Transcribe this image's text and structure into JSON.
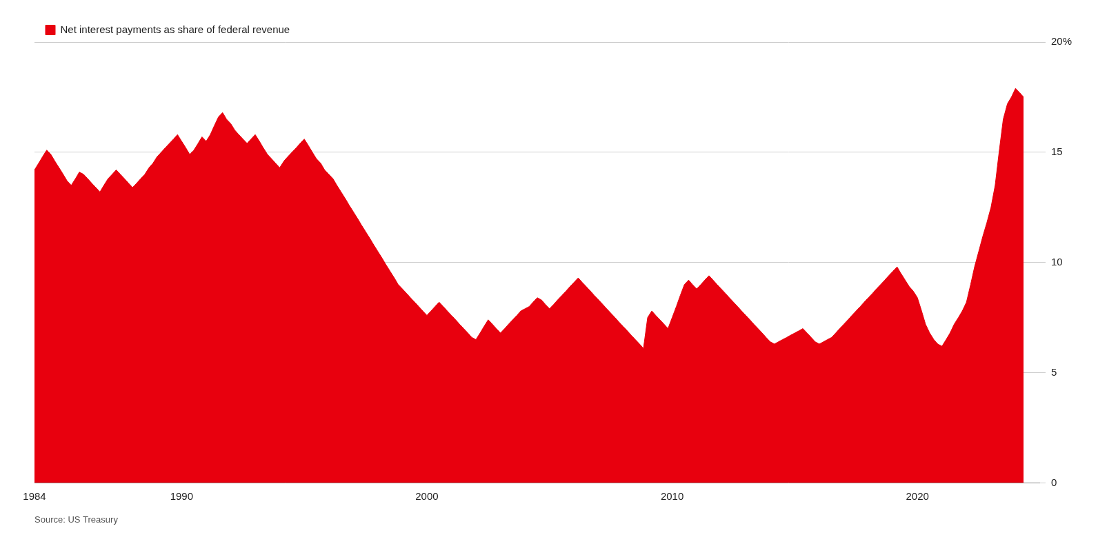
{
  "chart_data": {
    "type": "area",
    "x": [
      1984.0,
      1984.17,
      1984.33,
      1984.5,
      1984.67,
      1984.83,
      1985.0,
      1985.17,
      1985.33,
      1985.5,
      1985.67,
      1985.83,
      1986.0,
      1986.17,
      1986.33,
      1986.5,
      1986.67,
      1986.83,
      1987.0,
      1987.17,
      1987.33,
      1987.5,
      1987.67,
      1987.83,
      1988.0,
      1988.17,
      1988.33,
      1988.5,
      1988.67,
      1988.83,
      1989.0,
      1989.17,
      1989.33,
      1989.5,
      1989.67,
      1989.83,
      1990.0,
      1990.17,
      1990.33,
      1990.5,
      1990.67,
      1990.83,
      1991.0,
      1991.17,
      1991.33,
      1991.5,
      1991.67,
      1991.83,
      1992.0,
      1992.17,
      1992.33,
      1992.5,
      1992.67,
      1992.83,
      1993.0,
      1993.17,
      1993.33,
      1993.5,
      1993.67,
      1993.83,
      1994.0,
      1994.17,
      1994.33,
      1994.5,
      1994.67,
      1994.83,
      1995.0,
      1995.17,
      1995.33,
      1995.5,
      1995.67,
      1995.83,
      1996.0,
      1996.17,
      1996.33,
      1996.5,
      1996.67,
      1996.83,
      1997.0,
      1997.17,
      1997.33,
      1997.5,
      1997.67,
      1997.83,
      1998.0,
      1998.17,
      1998.33,
      1998.5,
      1998.67,
      1998.83,
      1999.0,
      1999.17,
      1999.33,
      1999.5,
      1999.67,
      1999.83,
      2000.0,
      2000.17,
      2000.33,
      2000.5,
      2000.67,
      2000.83,
      2001.0,
      2001.17,
      2001.33,
      2001.5,
      2001.67,
      2001.83,
      2002.0,
      2002.17,
      2002.33,
      2002.5,
      2002.67,
      2002.83,
      2003.0,
      2003.17,
      2003.33,
      2003.5,
      2003.67,
      2003.83,
      2004.0,
      2004.17,
      2004.33,
      2004.5,
      2004.67,
      2004.83,
      2005.0,
      2005.17,
      2005.33,
      2005.5,
      2005.67,
      2005.83,
      2006.0,
      2006.17,
      2006.33,
      2006.5,
      2006.67,
      2006.83,
      2007.0,
      2007.17,
      2007.33,
      2007.5,
      2007.67,
      2007.83,
      2008.0,
      2008.17,
      2008.33,
      2008.5,
      2008.67,
      2008.83,
      2009.0,
      2009.17,
      2009.33,
      2009.5,
      2009.67,
      2009.83,
      2010.0,
      2010.17,
      2010.33,
      2010.5,
      2010.67,
      2010.83,
      2011.0,
      2011.17,
      2011.33,
      2011.5,
      2011.67,
      2011.83,
      2012.0,
      2012.17,
      2012.33,
      2012.5,
      2012.67,
      2012.83,
      2013.0,
      2013.17,
      2013.33,
      2013.5,
      2013.67,
      2013.83,
      2014.0,
      2014.17,
      2014.33,
      2014.5,
      2014.67,
      2014.83,
      2015.0,
      2015.17,
      2015.33,
      2015.5,
      2015.67,
      2015.83,
      2016.0,
      2016.17,
      2016.33,
      2016.5,
      2016.67,
      2016.83,
      2017.0,
      2017.17,
      2017.33,
      2017.5,
      2017.67,
      2017.83,
      2018.0,
      2018.17,
      2018.33,
      2018.5,
      2018.67,
      2018.83,
      2019.0,
      2019.17,
      2019.33,
      2019.5,
      2019.67,
      2019.83,
      2020.0,
      2020.17,
      2020.33,
      2020.5,
      2020.67,
      2020.83,
      2021.0,
      2021.17,
      2021.33,
      2021.5,
      2021.67,
      2021.83,
      2022.0,
      2022.17,
      2022.33,
      2022.5,
      2022.67,
      2022.83,
      2023.0,
      2023.17,
      2023.33,
      2023.5,
      2023.67,
      2023.83,
      2024.0,
      2024.17,
      2024.33
    ],
    "series": [
      {
        "name": "Net interest payments as share of federal revenue",
        "color": "#E8000E",
        "values": [
          14.2,
          14.5,
          14.8,
          15.1,
          14.9,
          14.6,
          14.3,
          14.0,
          13.7,
          13.5,
          13.8,
          14.1,
          14.0,
          13.8,
          13.6,
          13.4,
          13.2,
          13.5,
          13.8,
          14.0,
          14.2,
          14.0,
          13.8,
          13.6,
          13.4,
          13.6,
          13.8,
          14.0,
          14.3,
          14.5,
          14.8,
          15.0,
          15.2,
          15.4,
          15.6,
          15.8,
          15.5,
          15.2,
          14.9,
          15.1,
          15.4,
          15.7,
          15.5,
          15.8,
          16.2,
          16.6,
          16.8,
          16.5,
          16.3,
          16.0,
          15.8,
          15.6,
          15.4,
          15.6,
          15.8,
          15.5,
          15.2,
          14.9,
          14.7,
          14.5,
          14.3,
          14.6,
          14.8,
          15.0,
          15.2,
          15.4,
          15.6,
          15.3,
          15.0,
          14.7,
          14.5,
          14.2,
          14.0,
          13.8,
          13.5,
          13.2,
          12.9,
          12.6,
          12.3,
          12.0,
          11.7,
          11.4,
          11.1,
          10.8,
          10.5,
          10.2,
          9.9,
          9.6,
          9.3,
          9.0,
          8.8,
          8.6,
          8.4,
          8.2,
          8.0,
          7.8,
          7.6,
          7.8,
          8.0,
          8.2,
          8.0,
          7.8,
          7.6,
          7.4,
          7.2,
          7.0,
          6.8,
          6.6,
          6.5,
          6.8,
          7.1,
          7.4,
          7.2,
          7.0,
          6.8,
          7.0,
          7.2,
          7.4,
          7.6,
          7.8,
          7.9,
          8.0,
          8.2,
          8.4,
          8.3,
          8.1,
          7.9,
          8.1,
          8.3,
          8.5,
          8.7,
          8.9,
          9.1,
          9.3,
          9.1,
          8.9,
          8.7,
          8.5,
          8.3,
          8.1,
          7.9,
          7.7,
          7.5,
          7.3,
          7.1,
          6.9,
          6.7,
          6.5,
          6.3,
          6.1,
          7.5,
          7.8,
          7.6,
          7.4,
          7.2,
          7.0,
          7.5,
          8.0,
          8.5,
          9.0,
          9.2,
          9.0,
          8.8,
          9.0,
          9.2,
          9.4,
          9.2,
          9.0,
          8.8,
          8.6,
          8.4,
          8.2,
          8.0,
          7.8,
          7.6,
          7.4,
          7.2,
          7.0,
          6.8,
          6.6,
          6.4,
          6.3,
          6.4,
          6.5,
          6.6,
          6.7,
          6.8,
          6.9,
          7.0,
          6.8,
          6.6,
          6.4,
          6.3,
          6.4,
          6.5,
          6.6,
          6.8,
          7.0,
          7.2,
          7.4,
          7.6,
          7.8,
          8.0,
          8.2,
          8.4,
          8.6,
          8.8,
          9.0,
          9.2,
          9.4,
          9.6,
          9.8,
          9.5,
          9.2,
          8.9,
          8.7,
          8.4,
          7.8,
          7.2,
          6.8,
          6.5,
          6.3,
          6.2,
          6.5,
          6.8,
          7.2,
          7.5,
          7.8,
          8.2,
          9.0,
          9.8,
          10.5,
          11.2,
          11.8,
          12.5,
          13.5,
          15.0,
          16.5,
          17.2,
          17.5,
          17.9,
          17.7,
          17.5
        ]
      }
    ],
    "xlim": [
      1984,
      2025
    ],
    "xticks": [
      1984,
      1990,
      2000,
      2010,
      2020
    ],
    "ylim": [
      0,
      20
    ],
    "yticks": [
      0,
      5,
      10,
      15,
      {
        "value": 20,
        "label": "20%"
      }
    ],
    "grid": "y",
    "legend": "upper left",
    "annotations": [
      "Source: US Treasury"
    ]
  }
}
